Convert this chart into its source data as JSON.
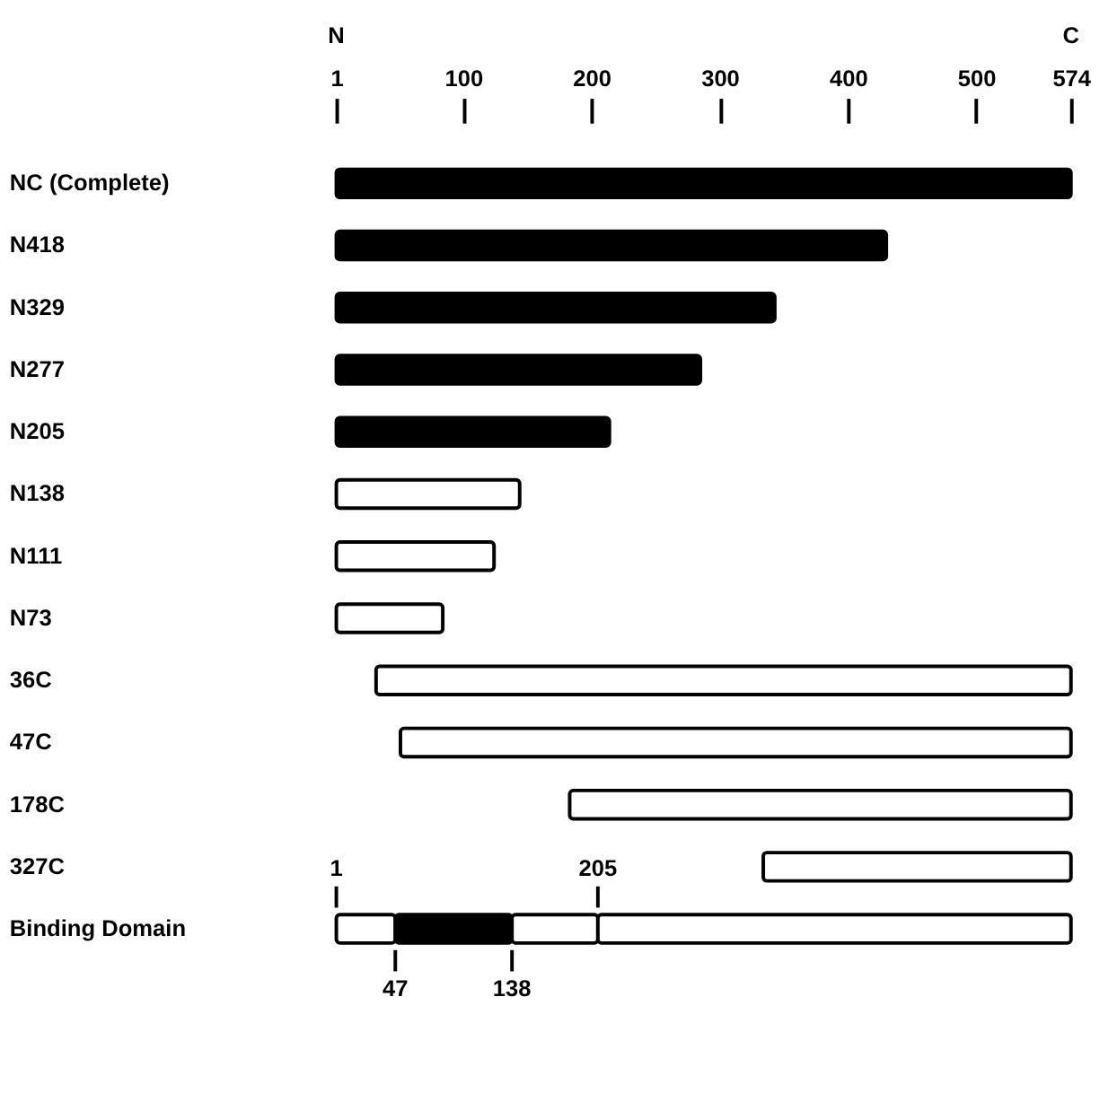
{
  "chart_data": {
    "type": "bar",
    "orientation": "horizontal",
    "categories": [
      "NC (Complete)",
      "N418",
      "N329",
      "N277",
      "N205",
      "N138",
      "N111",
      "N73",
      "36C",
      "47C",
      "178C",
      "327C",
      "Binding Domain"
    ],
    "series": [
      {
        "values": [
          573,
          429,
          342,
          284,
          213,
          143,
          123,
          83,
          542,
          523,
          391,
          240,
          null
        ],
        "base": [
          1,
          1,
          1,
          1,
          1,
          1,
          1,
          1,
          32,
          51,
          183,
          334,
          null
        ],
        "colors": [
          "#000000",
          "#000000",
          "#000000",
          "#000000",
          "#000000",
          "#ffffff",
          "#ffffff",
          "#ffffff",
          "#ffffff",
          "#ffffff",
          "#ffffff",
          "#ffffff",
          "#ffffff"
        ]
      },
      {
        "values": [
          null,
          null,
          null,
          null,
          null,
          null,
          null,
          null,
          null,
          null,
          null,
          null,
          46
        ],
        "base": [
          null,
          null,
          null,
          null,
          null,
          null,
          null,
          null,
          null,
          null,
          null,
          null,
          1
        ],
        "color": "#ffffff"
      },
      {
        "values": [
          null,
          null,
          null,
          null,
          null,
          null,
          null,
          null,
          null,
          null,
          null,
          null,
          91
        ],
        "base": [
          null,
          null,
          null,
          null,
          null,
          null,
          null,
          null,
          null,
          null,
          null,
          null,
          47
        ],
        "color": "#000000"
      },
      {
        "values": [
          null,
          null,
          null,
          null,
          null,
          null,
          null,
          null,
          null,
          null,
          null,
          null,
          67
        ],
        "base": [
          null,
          null,
          null,
          null,
          null,
          null,
          null,
          null,
          null,
          null,
          null,
          null,
          138
        ],
        "color": "#ffffff"
      },
      {
        "values": [
          null,
          null,
          null,
          null,
          null,
          null,
          null,
          null,
          null,
          null,
          null,
          null,
          369
        ],
        "base": [
          null,
          null,
          null,
          null,
          null,
          null,
          null,
          null,
          null,
          null,
          null,
          null,
          205
        ],
        "color": "#ffffff"
      }
    ],
    "xlim": [
      1,
      574
    ],
    "xticks": [
      1,
      100,
      200,
      300,
      400,
      500,
      574
    ],
    "annotations": [
      "N",
      "C",
      {
        "text": "1",
        "x": 1,
        "y": "Binding Domain"
      },
      {
        "text": "205",
        "x": 205,
        "y": "Binding Domain"
      },
      {
        "text": "47",
        "x": 47,
        "y": "Binding Domain"
      },
      {
        "text": "138",
        "x": 138,
        "y": "Binding Domain"
      }
    ],
    "grid": false
  }
}
